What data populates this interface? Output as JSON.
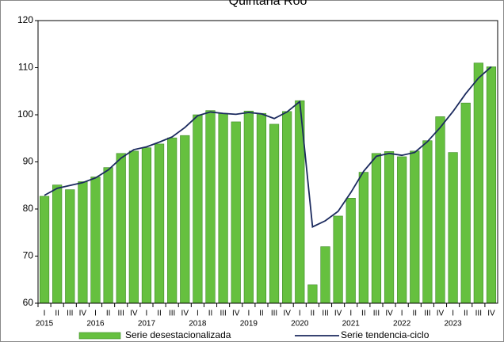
{
  "chart_data": {
    "type": "bar_line",
    "title": "Quintana Roo",
    "categories": [
      "I",
      "II",
      "III",
      "IV",
      "I",
      "II",
      "III",
      "IV",
      "I",
      "II",
      "III",
      "IV",
      "I",
      "II",
      "III",
      "IV",
      "I",
      "II",
      "III",
      "IV",
      "I",
      "II",
      "III",
      "IV",
      "I",
      "II",
      "III",
      "IV",
      "I",
      "II",
      "III",
      "IV",
      "I",
      "II",
      "III",
      "IV"
    ],
    "years": [
      "2015",
      "2016",
      "2017",
      "2018",
      "2019",
      "2020",
      "2021",
      "2022",
      "2023"
    ],
    "series": [
      {
        "name": "Serie desestacionalizada",
        "color": "#66c03f",
        "kind": "bar",
        "values": [
          82.7,
          85.1,
          84.1,
          85.8,
          86.8,
          88.8,
          91.8,
          92.3,
          93.0,
          93.8,
          95.1,
          95.6,
          100.0,
          100.9,
          100.3,
          98.5,
          100.8,
          100.3,
          98.0,
          100.7,
          103.0,
          63.9,
          72.0,
          78.5,
          82.3,
          87.8,
          91.8,
          92.2,
          91.1,
          92.3,
          94.5,
          99.6,
          92.0,
          102.5,
          111.0,
          110.2
        ]
      },
      {
        "name": "Serie tendencia-ciclo",
        "color": "#1b2a5e",
        "kind": "line",
        "values": [
          82.9,
          84.4,
          85.0,
          85.6,
          86.6,
          88.3,
          90.8,
          92.6,
          93.2,
          94.2,
          95.3,
          97.3,
          99.8,
          100.6,
          100.3,
          100.1,
          100.5,
          100.2,
          99.2,
          100.6,
          102.8,
          76.2,
          77.5,
          79.5,
          83.5,
          88.0,
          91.2,
          91.8,
          91.4,
          92.0,
          94.3,
          97.3,
          100.7,
          104.5,
          107.8,
          110.2
        ]
      }
    ],
    "ylim": [
      60,
      120
    ],
    "yticks": [
      60,
      70,
      80,
      90,
      100,
      110,
      120
    ]
  }
}
